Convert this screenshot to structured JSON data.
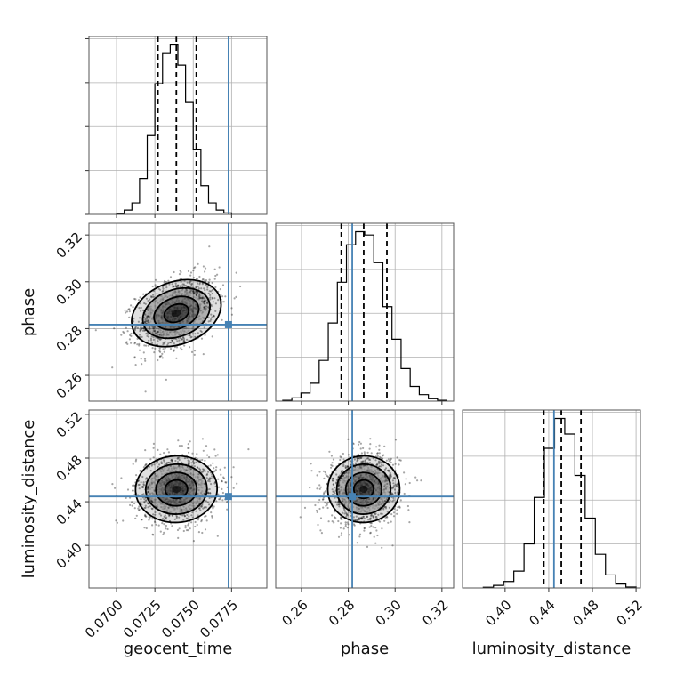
{
  "chart_data": {
    "type": "corner",
    "parameters": [
      {
        "key": "geocent_time",
        "label": "geocent_time",
        "range": [
          0.0682,
          0.0798
        ],
        "ticks": [
          0.07,
          0.0725,
          0.075,
          0.0775
        ],
        "tick_labels": [
          "0.0700",
          "0.0725",
          "0.0750",
          "0.0775"
        ],
        "truth": 0.0773,
        "mean": 0.0739,
        "sd": 0.0013,
        "quantiles": [
          0.0727,
          0.0739,
          0.0752
        ],
        "hist_edges": [
          0.07,
          0.0775
        ],
        "hist_counts": [
          0.5,
          3,
          8,
          25,
          55,
          91,
          112,
          118,
          104,
          78,
          45,
          20,
          8,
          3,
          1
        ]
      },
      {
        "key": "phase",
        "label": "phase",
        "range": [
          0.249,
          0.325
        ],
        "ticks": [
          0.26,
          0.28,
          0.3,
          0.32
        ],
        "tick_labels": [
          "0.26",
          "0.28",
          "0.30",
          "0.32"
        ],
        "truth": 0.2817,
        "mean": 0.2866,
        "sd": 0.0075,
        "quantiles": [
          0.277,
          0.2866,
          0.2965
        ],
        "hist_edges": [
          0.252,
          0.322
        ],
        "hist_counts": [
          0.5,
          2,
          5,
          11,
          25,
          48,
          73,
          96,
          104,
          102,
          85,
          58,
          38,
          20,
          9,
          4,
          1.5,
          0.5
        ]
      },
      {
        "key": "luminosity_distance",
        "label": "luminosity_distance",
        "range": [
          0.361,
          0.524
        ],
        "ticks": [
          0.4,
          0.44,
          0.48,
          0.52
        ],
        "tick_labels": [
          "0.40",
          "0.44",
          "0.48",
          "0.52"
        ],
        "truth": 0.4448,
        "mean": 0.4515,
        "sd": 0.0155,
        "quantiles": [
          0.4355,
          0.4515,
          0.4695
        ],
        "hist_edges": [
          0.38,
          0.52
        ],
        "hist_counts": [
          0.5,
          2,
          5,
          13,
          34,
          70,
          108,
          131,
          119,
          87,
          54,
          26,
          10,
          3,
          0.7
        ]
      }
    ],
    "grid": true,
    "truth_color": "#4682b4",
    "contour_levels": [
      "0.5-sigma",
      "1-sigma",
      "1.5-sigma",
      "2-sigma"
    ]
  }
}
